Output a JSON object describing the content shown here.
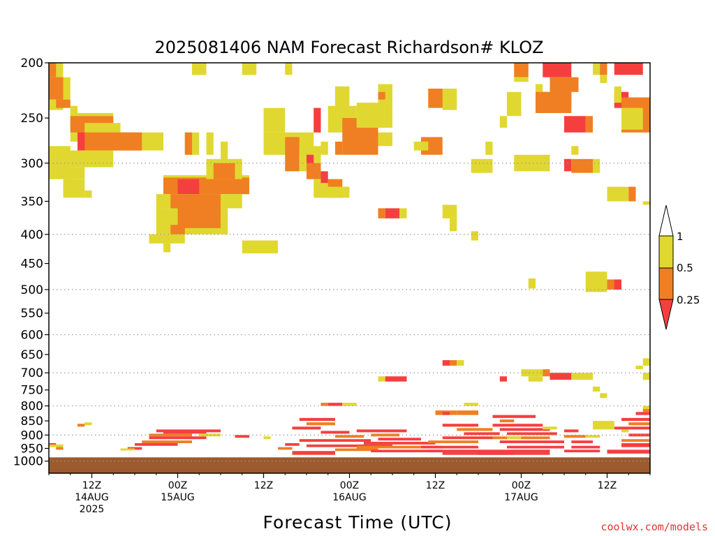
{
  "chart_data": {
    "type": "heatmap",
    "title": "2025081406 NAM Forecast Richardson# KLOZ",
    "xlabel": "Forecast Time (UTC)",
    "ylabel": "",
    "credit": "coolwx.com/models",
    "x_axis": {
      "unit": "hours since 2025-08-14 06Z",
      "range": [
        0,
        84
      ],
      "ticks": [
        {
          "hour": 6,
          "lines": [
            "12Z",
            "14AUG",
            "2025"
          ]
        },
        {
          "hour": 18,
          "lines": [
            "00Z",
            "15AUG"
          ]
        },
        {
          "hour": 30,
          "lines": [
            "12Z"
          ]
        },
        {
          "hour": 42,
          "lines": [
            "00Z",
            "16AUG"
          ]
        },
        {
          "hour": 54,
          "lines": [
            "12Z"
          ]
        },
        {
          "hour": 66,
          "lines": [
            "00Z",
            "17AUG"
          ]
        },
        {
          "hour": 78,
          "lines": [
            "12Z"
          ]
        }
      ]
    },
    "y_axis": {
      "unit": "hPa",
      "scale": "log",
      "range": [
        1050,
        200
      ],
      "ticks": [
        200,
        250,
        300,
        350,
        400,
        450,
        500,
        550,
        600,
        650,
        700,
        750,
        800,
        850,
        900,
        950,
        1000
      ],
      "gridlines": [
        300,
        400,
        500,
        600,
        700,
        800,
        900,
        1000
      ]
    },
    "legend": {
      "placement": "right",
      "labels": [
        "1",
        "0.5",
        "0.25"
      ],
      "bins": [
        {
          "range": "0.5 - 1",
          "color": "#e0d830"
        },
        {
          "range": "0.25 - 0.5",
          "color": "#ef7f22"
        },
        {
          "range": "< 0.25",
          "color": "#f53f3f"
        }
      ]
    },
    "ground": {
      "color": "#9c5a2e",
      "level_hPa": 985
    },
    "colors": {
      "yellow": "#e0d830",
      "orange": "#ef7f22",
      "red": "#f53f3f"
    },
    "cells": [
      [
        "y",
        0,
        2,
        200,
        212
      ],
      [
        "o",
        0,
        1,
        200,
        212
      ],
      [
        "y",
        0,
        3,
        212,
        232
      ],
      [
        "o",
        0,
        2,
        212,
        232
      ],
      [
        "y",
        0,
        2,
        232,
        242
      ],
      [
        "o",
        1,
        3,
        232,
        240
      ],
      [
        "y",
        3,
        4,
        238,
        275
      ],
      [
        "y",
        3,
        9,
        245,
        262
      ],
      [
        "o",
        3,
        9,
        248,
        265
      ],
      [
        "y",
        5,
        10,
        255,
        270
      ],
      [
        "y",
        0,
        3,
        280,
        320
      ],
      [
        "o",
        4,
        13,
        265,
        285
      ],
      [
        "r",
        4,
        5,
        265,
        285
      ],
      [
        "y",
        4,
        16,
        265,
        285
      ],
      [
        "o",
        4,
        13,
        265,
        285
      ],
      [
        "r",
        4,
        5,
        265,
        285
      ],
      [
        "y",
        0,
        9,
        285,
        305
      ],
      [
        "y",
        2,
        5,
        305,
        320
      ],
      [
        "y",
        2,
        5,
        320,
        345
      ],
      [
        "y",
        5,
        6,
        335,
        345
      ],
      [
        "y",
        20,
        22,
        200,
        210
      ],
      [
        "y",
        27,
        29,
        200,
        210
      ],
      [
        "y",
        33,
        34,
        200,
        210
      ],
      [
        "y",
        19,
        21,
        265,
        290
      ],
      [
        "o",
        19,
        20,
        265,
        290
      ],
      [
        "y",
        22,
        23,
        265,
        290
      ],
      [
        "y",
        16,
        28,
        315,
        340
      ],
      [
        "o",
        16,
        28,
        318,
        340
      ],
      [
        "r",
        18,
        21,
        320,
        340
      ],
      [
        "y",
        22,
        27,
        295,
        320
      ],
      [
        "o",
        23,
        26,
        300,
        320
      ],
      [
        "y",
        24,
        25,
        275,
        300
      ],
      [
        "y",
        15,
        27,
        340,
        360
      ],
      [
        "o",
        17,
        24,
        340,
        365
      ],
      [
        "y",
        15,
        25,
        360,
        400
      ],
      [
        "o",
        18,
        24,
        355,
        390
      ],
      [
        "o",
        17,
        19,
        385,
        400
      ],
      [
        "y",
        14,
        19,
        400,
        415
      ],
      [
        "y",
        16,
        17,
        415,
        430
      ],
      [
        "y",
        27,
        32,
        410,
        432
      ],
      [
        "y",
        30,
        33,
        240,
        265
      ],
      [
        "y",
        30,
        37,
        265,
        290
      ],
      [
        "o",
        33,
        35,
        270,
        310
      ],
      [
        "y",
        35,
        38,
        280,
        310
      ],
      [
        "r",
        36,
        37,
        290,
        310
      ],
      [
        "o",
        36,
        38,
        300,
        320
      ],
      [
        "y",
        37,
        40,
        320,
        345
      ],
      [
        "o",
        39,
        41,
        320,
        345
      ],
      [
        "r",
        38,
        39,
        310,
        325
      ],
      [
        "y",
        38,
        42,
        330,
        345
      ],
      [
        "y",
        37,
        38,
        240,
        265
      ],
      [
        "r",
        37,
        38,
        240,
        265
      ],
      [
        "y",
        38,
        39,
        275,
        290
      ],
      [
        "y",
        40,
        42,
        220,
        245
      ],
      [
        "y",
        39,
        43,
        238,
        265
      ],
      [
        "o",
        41,
        46,
        250,
        290
      ],
      [
        "y",
        43,
        48,
        235,
        260
      ],
      [
        "o",
        40,
        41,
        275,
        290
      ],
      [
        "y",
        45,
        47,
        238,
        250
      ],
      [
        "y",
        46,
        48,
        218,
        240
      ],
      [
        "o",
        46,
        47,
        225,
        232
      ],
      [
        "y",
        46,
        48,
        265,
        280
      ],
      [
        "o",
        53,
        56,
        222,
        240
      ],
      [
        "y",
        55,
        57,
        222,
        242
      ],
      [
        "o",
        52,
        55,
        270,
        290
      ],
      [
        "y",
        51,
        53,
        275,
        285
      ],
      [
        "o",
        46,
        47,
        360,
        375
      ],
      [
        "r",
        47,
        49,
        360,
        375
      ],
      [
        "y",
        49,
        50,
        360,
        375
      ],
      [
        "y",
        55,
        57,
        355,
        375
      ],
      [
        "y",
        56,
        57,
        375,
        395
      ],
      [
        "y",
        59,
        60,
        395,
        410
      ],
      [
        "y",
        59,
        62,
        295,
        312
      ],
      [
        "y",
        64,
        66,
        225,
        248
      ],
      [
        "y",
        63,
        64,
        248,
        260
      ],
      [
        "o",
        65,
        67,
        200,
        212
      ],
      [
        "y",
        65,
        67,
        212,
        216
      ],
      [
        "r",
        69,
        73,
        200,
        212
      ],
      [
        "o",
        70,
        74,
        212,
        225
      ],
      [
        "r",
        69,
        73,
        225,
        240
      ],
      [
        "y",
        68,
        69,
        218,
        228
      ],
      [
        "o",
        68,
        73,
        225,
        245
      ],
      [
        "r",
        72,
        75,
        248,
        265
      ],
      [
        "o",
        75,
        76,
        248,
        265
      ],
      [
        "y",
        73,
        74,
        280,
        290
      ],
      [
        "r",
        72,
        73,
        295,
        310
      ],
      [
        "o",
        73,
        76,
        295,
        312
      ],
      [
        "y",
        76,
        77,
        295,
        312
      ],
      [
        "y",
        76,
        78,
        200,
        210
      ],
      [
        "o",
        77,
        78,
        200,
        210
      ],
      [
        "y",
        77,
        78,
        210,
        217
      ],
      [
        "r",
        79,
        83,
        200,
        210
      ],
      [
        "r",
        79,
        81,
        225,
        240
      ],
      [
        "o",
        80,
        84,
        230,
        265
      ],
      [
        "y",
        79,
        80,
        220,
        235
      ],
      [
        "y",
        80,
        83,
        240,
        262
      ],
      [
        "y",
        78,
        81,
        330,
        350
      ],
      [
        "o",
        81,
        82,
        330,
        350
      ],
      [
        "y",
        83,
        84,
        350,
        355
      ],
      [
        "y",
        68,
        70,
        290,
        310
      ],
      [
        "y",
        65,
        68,
        290,
        310
      ],
      [
        "y",
        61,
        62,
        275,
        290
      ],
      [
        "y",
        75,
        78,
        465,
        505
      ],
      [
        "o",
        78,
        80,
        480,
        500
      ],
      [
        "r",
        79,
        80,
        480,
        500
      ],
      [
        "y",
        67,
        68,
        478,
        498
      ],
      [
        "r",
        55,
        56,
        665,
        680
      ],
      [
        "o",
        56,
        57,
        665,
        680
      ],
      [
        "y",
        57,
        58,
        665,
        680
      ],
      [
        "y",
        46,
        47,
        710,
        725
      ],
      [
        "r",
        47,
        50,
        710,
        725
      ],
      [
        "y",
        66,
        69,
        690,
        710
      ],
      [
        "o",
        69,
        70,
        690,
        710
      ],
      [
        "r",
        70,
        73,
        700,
        720
      ],
      [
        "y",
        73,
        76,
        700,
        720
      ],
      [
        "y",
        67,
        69,
        710,
        725
      ],
      [
        "r",
        63,
        64,
        710,
        725
      ],
      [
        "y",
        76,
        77,
        740,
        755
      ],
      [
        "y",
        77,
        78,
        760,
        775
      ],
      [
        "y",
        83,
        84,
        660,
        680
      ],
      [
        "y",
        82,
        83,
        680,
        690
      ],
      [
        "y",
        83,
        84,
        700,
        720
      ],
      [
        "o",
        38,
        39,
        790,
        800
      ],
      [
        "r",
        39,
        41,
        790,
        800
      ],
      [
        "y",
        41,
        43,
        790,
        800
      ],
      [
        "y",
        58,
        60,
        790,
        800
      ],
      [
        "o",
        57,
        60,
        815,
        830
      ],
      [
        "o",
        54,
        57,
        815,
        830
      ],
      [
        "r",
        55,
        56,
        820,
        830
      ],
      [
        "y",
        5,
        6,
        855,
        865
      ],
      [
        "o",
        4,
        5,
        860,
        870
      ],
      [
        "r",
        0,
        1,
        930,
        940
      ],
      [
        "y",
        0,
        2,
        935,
        945
      ],
      [
        "o",
        1,
        2,
        945,
        955
      ],
      [
        "r",
        15,
        24,
        880,
        890
      ],
      [
        "o",
        14,
        20,
        895,
        905
      ],
      [
        "r",
        14,
        22,
        905,
        915
      ],
      [
        "o",
        13,
        20,
        920,
        930
      ],
      [
        "r",
        12,
        18,
        930,
        940
      ],
      [
        "r",
        11,
        13,
        945,
        955
      ],
      [
        "y",
        10,
        12,
        950,
        958
      ],
      [
        "r",
        16,
        22,
        885,
        895
      ],
      [
        "y",
        21,
        24,
        895,
        905
      ],
      [
        "r",
        26,
        28,
        900,
        910
      ],
      [
        "y",
        30,
        31,
        905,
        915
      ],
      [
        "r",
        33,
        35,
        930,
        940
      ],
      [
        "o",
        32,
        34,
        945,
        955
      ],
      [
        "r",
        35,
        40,
        840,
        850
      ],
      [
        "o",
        36,
        40,
        855,
        865
      ],
      [
        "r",
        34,
        38,
        870,
        880
      ],
      [
        "r",
        38,
        42,
        885,
        895
      ],
      [
        "o",
        40,
        44,
        900,
        910
      ],
      [
        "r",
        35,
        45,
        915,
        925
      ],
      [
        "r",
        36,
        48,
        935,
        945
      ],
      [
        "o",
        40,
        46,
        950,
        960
      ],
      [
        "r",
        34,
        40,
        960,
        975
      ],
      [
        "r",
        43,
        50,
        880,
        890
      ],
      [
        "o",
        45,
        49,
        895,
        905
      ],
      [
        "r",
        46,
        52,
        910,
        920
      ],
      [
        "r",
        44,
        54,
        925,
        935
      ],
      [
        "o",
        43,
        55,
        940,
        950
      ],
      [
        "r",
        45,
        55,
        955,
        965
      ],
      [
        "r",
        55,
        60,
        860,
        870
      ],
      [
        "o",
        57,
        62,
        875,
        885
      ],
      [
        "r",
        58,
        63,
        890,
        900
      ],
      [
        "r",
        55,
        62,
        905,
        915
      ],
      [
        "o",
        53,
        60,
        920,
        930
      ],
      [
        "r",
        52,
        60,
        940,
        950
      ],
      [
        "r",
        53,
        62,
        955,
        965
      ],
      [
        "r",
        55,
        65,
        965,
        975
      ],
      [
        "r",
        62,
        68,
        830,
        840
      ],
      [
        "o",
        63,
        65,
        845,
        855
      ],
      [
        "r",
        62,
        69,
        860,
        870
      ],
      [
        "r",
        63,
        70,
        875,
        885
      ],
      [
        "r",
        64,
        71,
        890,
        900
      ],
      [
        "o",
        62,
        70,
        905,
        915
      ],
      [
        "r",
        63,
        72,
        920,
        930
      ],
      [
        "r",
        64,
        72,
        940,
        950
      ],
      [
        "r",
        62,
        70,
        955,
        965
      ],
      [
        "r",
        60,
        70,
        965,
        975
      ],
      [
        "r",
        72,
        74,
        880,
        890
      ],
      [
        "o",
        72,
        75,
        900,
        910
      ],
      [
        "r",
        73,
        76,
        920,
        930
      ],
      [
        "y",
        75,
        77,
        900,
        910
      ],
      [
        "r",
        73,
        77,
        940,
        950
      ],
      [
        "r",
        72,
        77,
        955,
        965
      ],
      [
        "r",
        80,
        84,
        840,
        850
      ],
      [
        "o",
        81,
        84,
        855,
        865
      ],
      [
        "r",
        79,
        84,
        870,
        880
      ],
      [
        "y",
        80,
        81,
        880,
        890
      ],
      [
        "r",
        81,
        84,
        895,
        905
      ],
      [
        "o",
        80,
        84,
        915,
        925
      ],
      [
        "r",
        80,
        84,
        930,
        945
      ],
      [
        "r",
        78,
        84,
        955,
        970
      ],
      [
        "r",
        82,
        84,
        820,
        830
      ],
      [
        "o",
        83,
        84,
        810,
        820
      ],
      [
        "y",
        83,
        84,
        800,
        810
      ],
      [
        "y",
        76,
        79,
        850,
        880
      ],
      [
        "y",
        69,
        71,
        870,
        880
      ],
      [
        "y",
        64,
        66,
        905,
        915
      ]
    ]
  }
}
